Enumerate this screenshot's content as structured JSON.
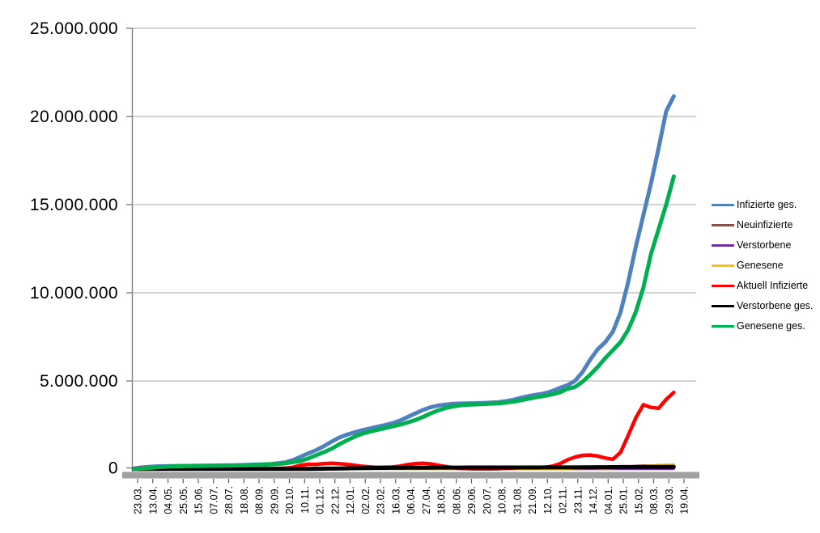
{
  "chart_data": {
    "type": "line",
    "title": "",
    "xlabel": "",
    "ylabel": "",
    "values_scale": 1000000,
    "values_unit": "persons (series values stored in millions)",
    "ylim": [
      0,
      25000000
    ],
    "grid": true,
    "legend_position": "right",
    "y_tick_labels": [
      "0",
      "5.000.000",
      "10.000.000",
      "15.000.000",
      "20.000.000",
      "25.000.000"
    ],
    "x_tick_labels": [
      "23.03.",
      "13.04.",
      "04.05.",
      "25.05.",
      "15.06.",
      "07.07.",
      "28.07.",
      "18.08.",
      "08.09.",
      "29.09.",
      "20.10.",
      "10.11.",
      "01.12.",
      "22.12.",
      "12.01.",
      "02.02.",
      "23.02.",
      "16.03.",
      "06.04.",
      "27.04.",
      "18.05.",
      "08.06.",
      "29.06.",
      "20.07.",
      "10.08.",
      "31.08.",
      "21.09.",
      "12.10.",
      "02.11.",
      "23.11.",
      "14.12.",
      "04.01.",
      "25.01.",
      "15.02.",
      "08.03.",
      "29.03.",
      "19.04."
    ],
    "series": [
      {
        "name": "Infizierte ges.",
        "color": "#4F81BD",
        "width": 5,
        "values": [
          0.03,
          0.09,
          0.13,
          0.155,
          0.165,
          0.175,
          0.18,
          0.185,
          0.19,
          0.195,
          0.2,
          0.205,
          0.21,
          0.22,
          0.23,
          0.24,
          0.255,
          0.27,
          0.29,
          0.33,
          0.39,
          0.52,
          0.71,
          0.9,
          1.08,
          1.3,
          1.55,
          1.78,
          1.95,
          2.08,
          2.2,
          2.3,
          2.4,
          2.49,
          2.6,
          2.75,
          2.95,
          3.15,
          3.35,
          3.5,
          3.6,
          3.66,
          3.7,
          3.72,
          3.73,
          3.74,
          3.75,
          3.77,
          3.8,
          3.86,
          3.94,
          4.05,
          4.15,
          4.22,
          4.3,
          4.42,
          4.6,
          4.75,
          5.0,
          5.5,
          6.2,
          6.8,
          7.2,
          7.8,
          8.9,
          10.6,
          12.6,
          14.4,
          16.2,
          18.2,
          20.3,
          21.15
        ]
      },
      {
        "name": "Neuinfizierte",
        "color": "#A5443C",
        "width": 2.5,
        "values": [
          0.004,
          0.005,
          0.003,
          0.002,
          0.001,
          0.001,
          0.001,
          0.0005,
          0.0005,
          0.001,
          0.001,
          0.002,
          0.001,
          0.001,
          0.001,
          0.001,
          0.0015,
          0.002,
          0.002,
          0.004,
          0.007,
          0.012,
          0.018,
          0.02,
          0.018,
          0.022,
          0.025,
          0.022,
          0.018,
          0.012,
          0.009,
          0.008,
          0.008,
          0.009,
          0.009,
          0.012,
          0.016,
          0.02,
          0.022,
          0.018,
          0.012,
          0.008,
          0.005,
          0.003,
          0.002,
          0.001,
          0.001,
          0.002,
          0.003,
          0.005,
          0.008,
          0.01,
          0.01,
          0.009,
          0.01,
          0.015,
          0.021,
          0.034,
          0.05,
          0.06,
          0.055,
          0.042,
          0.045,
          0.085,
          0.12,
          0.16,
          0.19,
          0.21,
          0.2,
          0.23,
          0.25,
          0.22
        ]
      },
      {
        "name": "Verstorbene",
        "color": "#7030A0",
        "width": 2.5,
        "values": [
          0.0002,
          0.0003,
          0.0002,
          0.0002,
          0.0001,
          0.0001,
          0.0001,
          0.0001,
          0.0001,
          0.0001,
          0.0001,
          0.0001,
          0.0001,
          0.0001,
          0.0001,
          0.0001,
          0.0001,
          0.0002,
          0.0002,
          0.0003,
          0.0004,
          0.0006,
          0.0008,
          0.0009,
          0.0009,
          0.0009,
          0.0008,
          0.0008,
          0.0009,
          0.0008,
          0.0007,
          0.0006,
          0.0005,
          0.0004,
          0.0004,
          0.0003,
          0.0003,
          0.0003,
          0.0002,
          0.0002,
          0.0002,
          0.0002,
          0.0001,
          0.0001,
          0.0001,
          0.0001,
          0.0001,
          0.0001,
          0.0001,
          0.0001,
          0.0001,
          0.0001,
          0.0001,
          0.0001,
          0.0001,
          0.0002,
          0.0002,
          0.0002,
          0.0003,
          0.0004,
          0.0004,
          0.0004,
          0.0003,
          0.0003,
          0.0002,
          0.0002,
          0.0002,
          0.0002,
          0.0003,
          0.0003,
          0.0003,
          0.0003
        ]
      },
      {
        "name": "Genesene",
        "color": "#FFC000",
        "width": 3,
        "values": [
          0.001,
          0.003,
          0.004,
          0.003,
          0.002,
          0.001,
          0.001,
          0.001,
          0.0005,
          0.0005,
          0.001,
          0.001,
          0.001,
          0.001,
          0.001,
          0.001,
          0.001,
          0.0015,
          0.002,
          0.003,
          0.005,
          0.008,
          0.013,
          0.017,
          0.018,
          0.019,
          0.022,
          0.024,
          0.021,
          0.017,
          0.013,
          0.01,
          0.008,
          0.008,
          0.008,
          0.01,
          0.013,
          0.017,
          0.02,
          0.02,
          0.016,
          0.011,
          0.007,
          0.004,
          0.002,
          0.001,
          0.001,
          0.001,
          0.002,
          0.003,
          0.005,
          0.008,
          0.009,
          0.009,
          0.009,
          0.011,
          0.015,
          0.024,
          0.038,
          0.05,
          0.055,
          0.05,
          0.045,
          0.055,
          0.08,
          0.11,
          0.15,
          0.18,
          0.2,
          0.21,
          0.24,
          0.26
        ]
      },
      {
        "name": "Aktuell Infizierte",
        "color": "#FF0000",
        "width": 4.5,
        "values": [
          0.025,
          0.055,
          0.062,
          0.048,
          0.03,
          0.02,
          0.014,
          0.011,
          0.009,
          0.009,
          0.01,
          0.011,
          0.012,
          0.016,
          0.018,
          0.019,
          0.022,
          0.024,
          0.027,
          0.037,
          0.055,
          0.11,
          0.225,
          0.275,
          0.27,
          0.31,
          0.335,
          0.31,
          0.27,
          0.22,
          0.16,
          0.13,
          0.105,
          0.11,
          0.12,
          0.17,
          0.25,
          0.31,
          0.33,
          0.3,
          0.22,
          0.14,
          0.08,
          0.04,
          0.022,
          0.015,
          0.012,
          0.015,
          0.025,
          0.045,
          0.065,
          0.085,
          0.09,
          0.085,
          0.09,
          0.16,
          0.3,
          0.52,
          0.68,
          0.78,
          0.8,
          0.74,
          0.63,
          0.56,
          0.95,
          1.9,
          2.9,
          3.65,
          3.5,
          3.45,
          3.95,
          4.35
        ]
      },
      {
        "name": "Verstorbene ges.",
        "color": "#000000",
        "width": 5,
        "values": [
          0.0,
          0.002,
          0.003,
          0.005,
          0.007,
          0.008,
          0.0085,
          0.009,
          0.009,
          0.009,
          0.009,
          0.0091,
          0.0092,
          0.0093,
          0.0093,
          0.0094,
          0.0094,
          0.0095,
          0.0096,
          0.0098,
          0.01,
          0.011,
          0.012,
          0.014,
          0.017,
          0.022,
          0.027,
          0.034,
          0.042,
          0.05,
          0.058,
          0.063,
          0.068,
          0.071,
          0.073,
          0.075,
          0.077,
          0.079,
          0.082,
          0.084,
          0.086,
          0.087,
          0.088,
          0.089,
          0.09,
          0.0905,
          0.091,
          0.0912,
          0.0915,
          0.0918,
          0.092,
          0.0925,
          0.093,
          0.0935,
          0.0945,
          0.095,
          0.096,
          0.097,
          0.0985,
          0.1,
          0.104,
          0.108,
          0.112,
          0.115,
          0.117,
          0.118,
          0.12,
          0.122,
          0.124,
          0.126,
          0.128,
          0.13
        ]
      },
      {
        "name": "Genesene ges.",
        "color": "#00B050",
        "width": 5,
        "values": [
          0.005,
          0.03,
          0.065,
          0.1,
          0.13,
          0.15,
          0.16,
          0.17,
          0.175,
          0.18,
          0.185,
          0.19,
          0.195,
          0.2,
          0.21,
          0.22,
          0.23,
          0.245,
          0.26,
          0.29,
          0.33,
          0.4,
          0.47,
          0.61,
          0.79,
          0.96,
          1.15,
          1.4,
          1.62,
          1.83,
          2.0,
          2.12,
          2.22,
          2.32,
          2.42,
          2.52,
          2.64,
          2.78,
          2.95,
          3.15,
          3.32,
          3.46,
          3.56,
          3.62,
          3.65,
          3.67,
          3.69,
          3.71,
          3.73,
          3.77,
          3.83,
          3.91,
          4.0,
          4.08,
          4.15,
          4.24,
          4.35,
          4.55,
          4.65,
          4.95,
          5.35,
          5.8,
          6.3,
          6.75,
          7.2,
          7.9,
          8.9,
          10.3,
          12.2,
          13.6,
          15.0,
          16.6
        ]
      }
    ],
    "colors": {
      "background": "#FFFFFF",
      "gridline": "#A6A6A6",
      "y_axis_line": "#808080",
      "x_axis_bar": "#A0A0A0",
      "tick_mark": "#595959",
      "label_text": "#000000"
    }
  }
}
